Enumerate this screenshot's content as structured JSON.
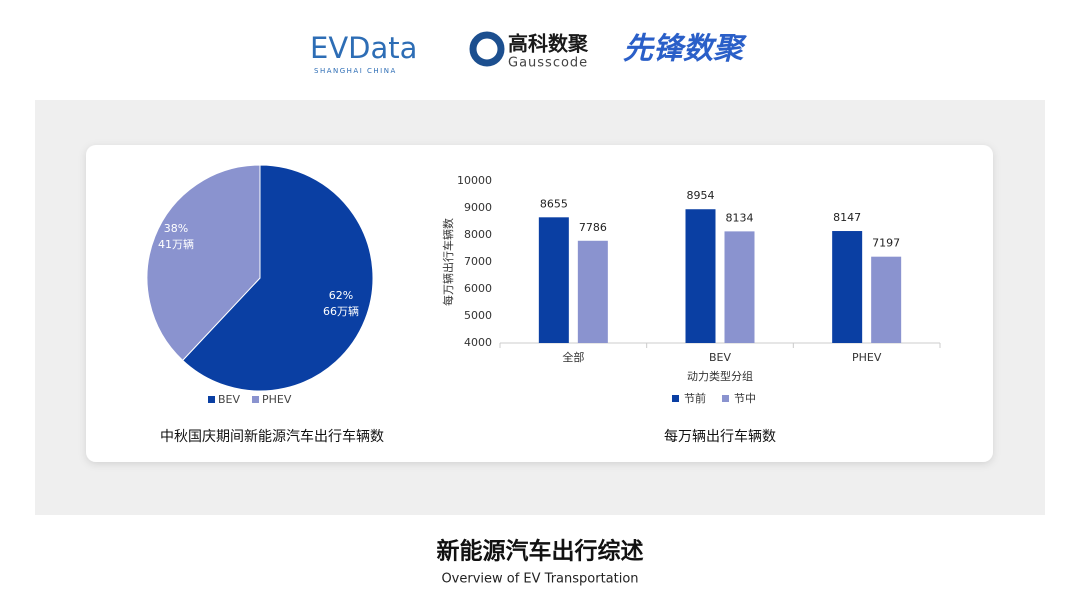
{
  "header": {
    "logo1": "EVData",
    "logo1_sub": "SHANGHAI CHINA",
    "logo2": "高科数聚",
    "logo2_sub": "Gausscode",
    "logo3": "先锋数聚"
  },
  "footer": {
    "title": "新能源汽车出行综述",
    "subtitle": "Overview of EV Transportation"
  },
  "chart_data": [
    {
      "type": "pie",
      "title": "中秋国庆期间新能源汽车出行车辆数",
      "categories": [
        "BEV",
        "PHEV"
      ],
      "values": [
        62,
        38
      ],
      "value_labels": [
        "62%",
        "38%"
      ],
      "counts": [
        66,
        41
      ],
      "count_labels": [
        "66万辆",
        "41万辆"
      ],
      "colors": [
        "#0a3fa3",
        "#8a93cf"
      ],
      "legend": "bottom"
    },
    {
      "type": "bar",
      "title": "每万辆出行车辆数",
      "xlabel": "动力类型分组",
      "ylabel": "每万辆出行车辆数",
      "categories": [
        "全部",
        "BEV",
        "PHEV"
      ],
      "series": [
        {
          "name": "节前",
          "color": "#0a3fa3",
          "values": [
            8655,
            8954,
            8147
          ]
        },
        {
          "name": "节中",
          "color": "#8a93cf",
          "values": [
            7786,
            8134,
            7197
          ]
        }
      ],
      "ylim": [
        4000,
        10000
      ],
      "yticks": [
        4000,
        5000,
        6000,
        7000,
        8000,
        9000,
        10000
      ],
      "grid": false,
      "legend": "bottom"
    }
  ]
}
